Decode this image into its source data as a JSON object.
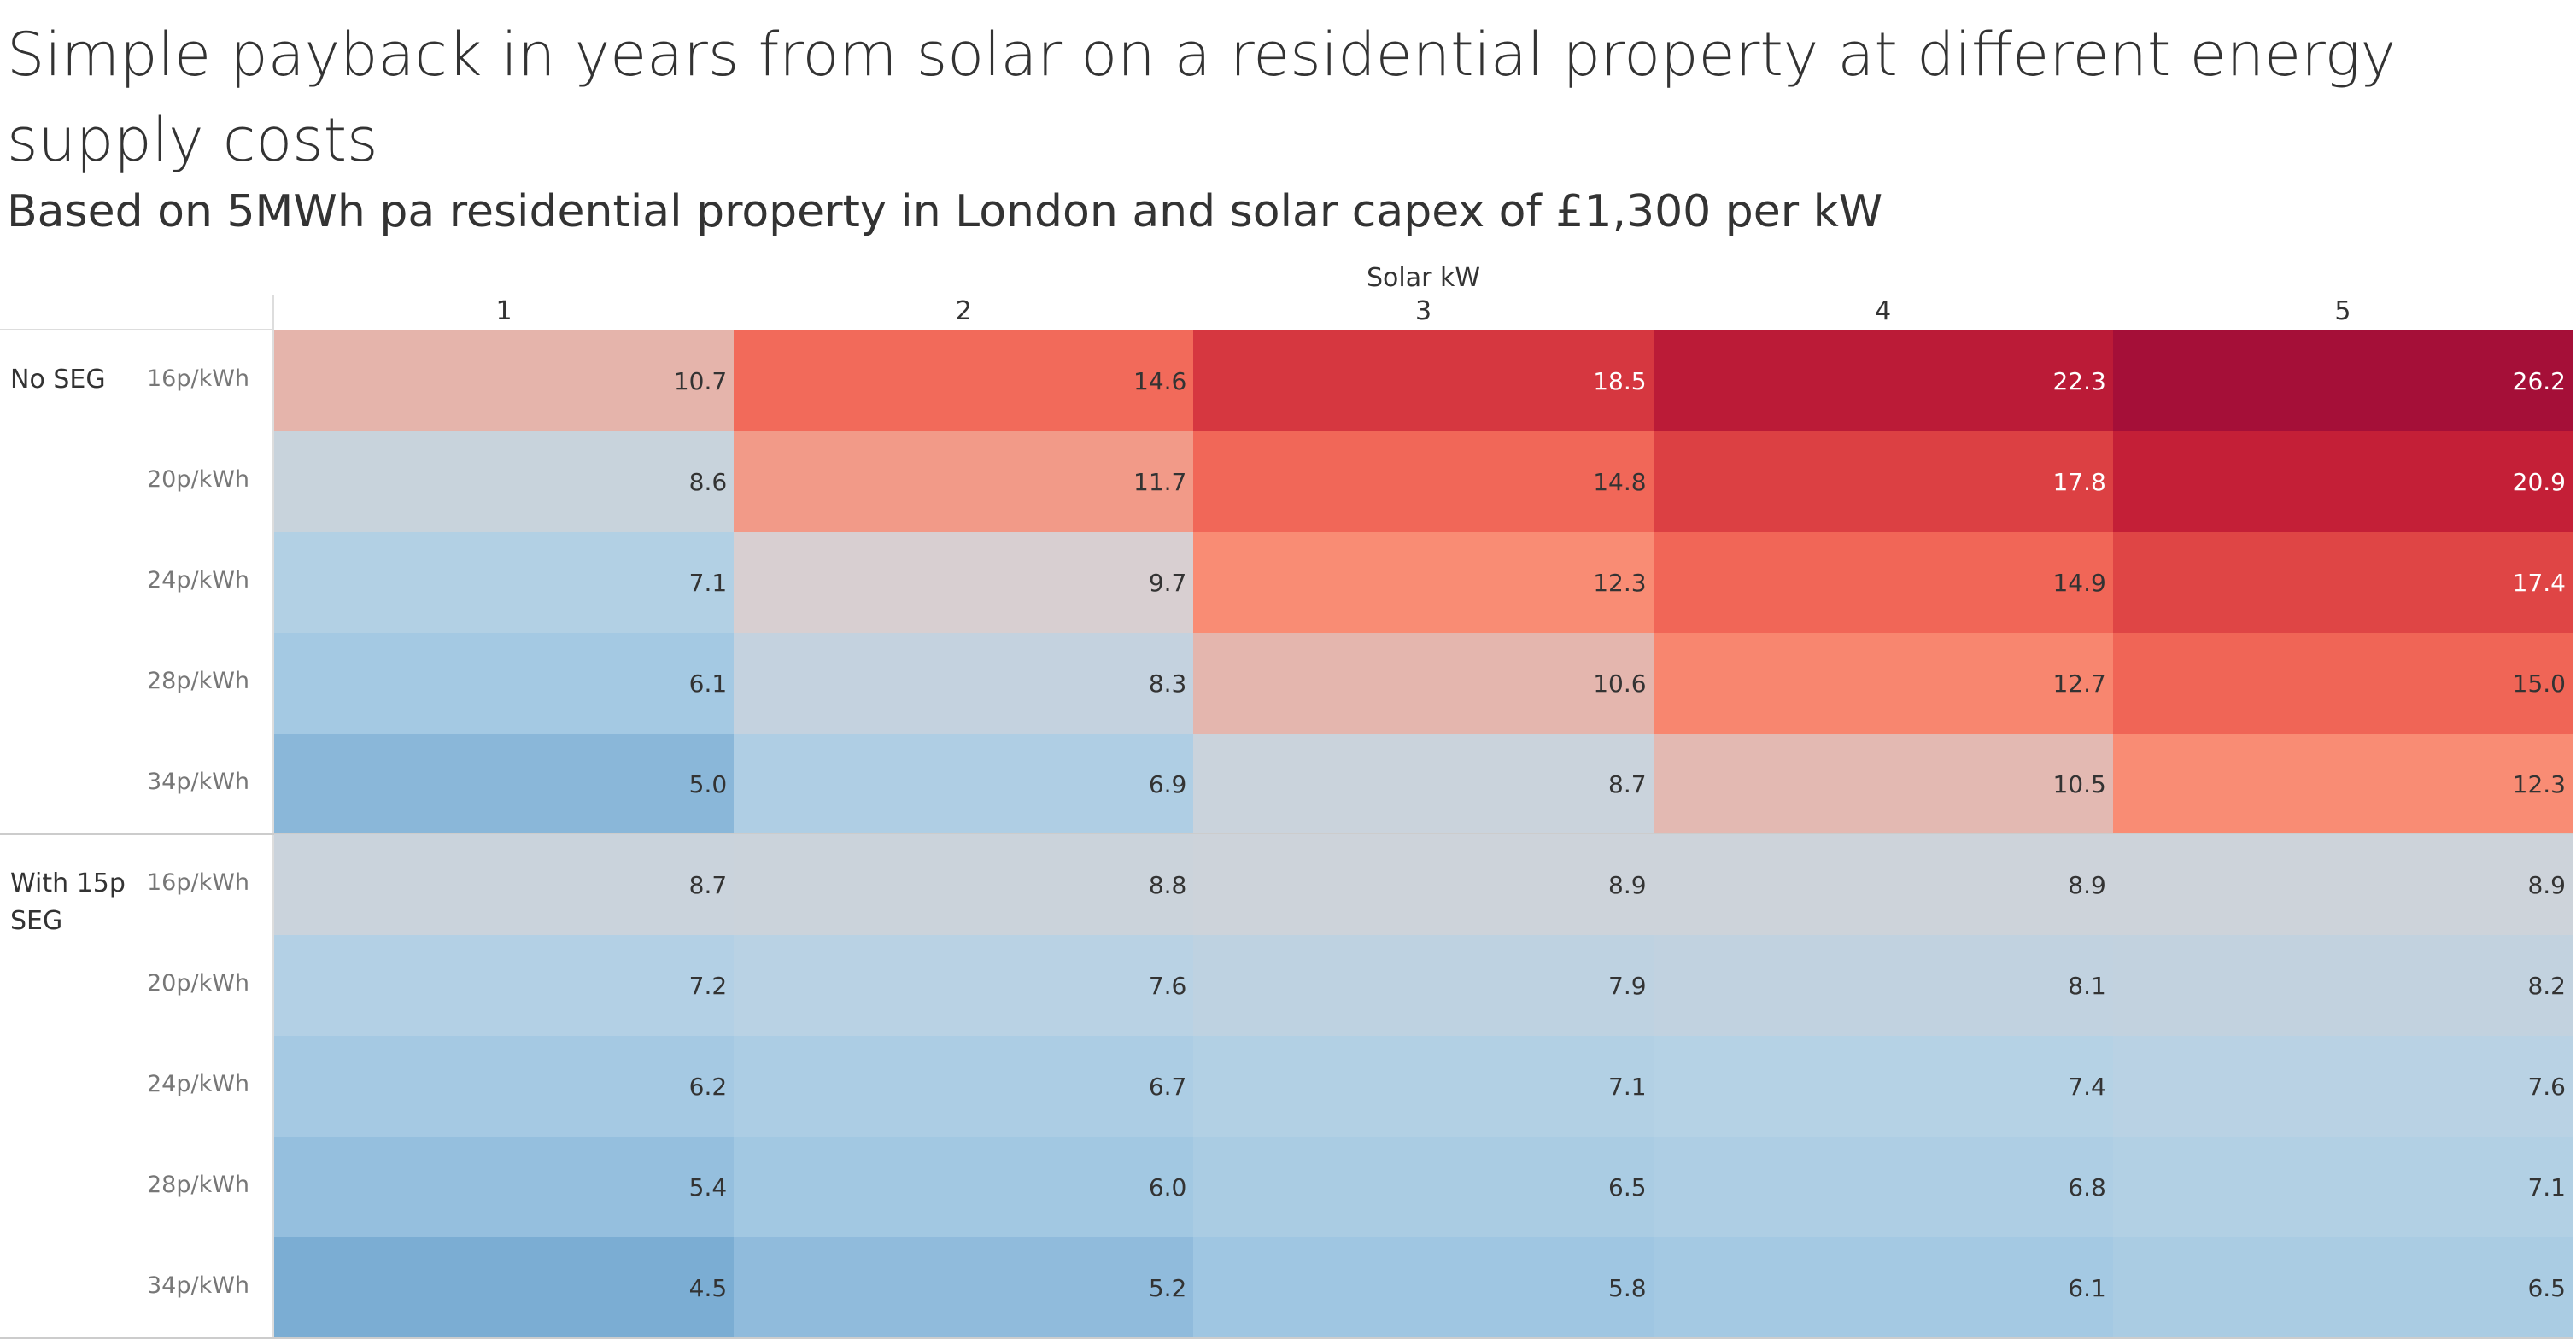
{
  "chart_data": {
    "type": "heatmap",
    "title": "Simple payback in years from solar on a residential property at different energy supply costs",
    "subtitle": "Based on 5MWh pa  residential property in London and solar capex of £1,300 per kW",
    "x_label": "Solar kW",
    "categories": [
      1,
      2,
      3,
      4,
      5
    ],
    "colormap": [
      "#7badd3",
      "#9fc6e2",
      "#b6d2e5",
      "#d6d3d6",
      "#f98c74",
      "#ee5a4e",
      "#c72137",
      "#a50f38"
    ],
    "groups": [
      {
        "name": "No SEG",
        "rows": [
          "16p/kWh",
          "20p/kWh",
          "24p/kWh",
          "28p/kWh",
          "34p/kWh"
        ],
        "values": [
          [
            10.7,
            14.6,
            18.5,
            22.3,
            26.2
          ],
          [
            8.6,
            11.7,
            14.8,
            17.8,
            20.9
          ],
          [
            7.1,
            9.7,
            12.3,
            14.9,
            17.4
          ],
          [
            6.1,
            8.3,
            10.6,
            12.7,
            15
          ],
          [
            5,
            6.9,
            8.7,
            10.5,
            12.3
          ]
        ],
        "value_labels": [
          [
            "10.7",
            "14.6",
            "18.5",
            "22.3",
            "26.2"
          ],
          [
            "8.6",
            "11.7",
            "14.8",
            "17.8",
            "20.9"
          ],
          [
            "7.1",
            "9.7",
            "12.3",
            "14.9",
            "17.4"
          ],
          [
            "6.1",
            "8.3",
            "10.6",
            "12.7",
            "15.0"
          ],
          [
            "5.0",
            "6.9",
            "8.7",
            "10.5",
            "12.3"
          ]
        ]
      },
      {
        "name": "With 15p SEG",
        "rows": [
          "16p/kWh",
          "20p/kWh",
          "24p/kWh",
          "28p/kWh",
          "34p/kWh"
        ],
        "values": [
          [
            8.7,
            8.8,
            8.9,
            8.9,
            8.9
          ],
          [
            7.2,
            7.6,
            7.9,
            8.1,
            8.2
          ],
          [
            6.2,
            6.7,
            7.1,
            7.4,
            7.6
          ],
          [
            5.4,
            6,
            6.5,
            6.8,
            7.1
          ],
          [
            4.5,
            5.2,
            5.8,
            6.1,
            6.5
          ]
        ],
        "value_labels": [
          [
            "8.7",
            "8.8",
            "8.9",
            "8.9",
            "8.9"
          ],
          [
            "7.2",
            "7.6",
            "7.9",
            "8.1",
            "8.2"
          ],
          [
            "6.2",
            "6.7",
            "7.1",
            "7.4",
            "7.6"
          ],
          [
            "5.4",
            "6.0",
            "6.5",
            "6.8",
            "7.1"
          ],
          [
            "4.5",
            "5.2",
            "5.8",
            "6.1",
            "6.5"
          ]
        ]
      }
    ]
  }
}
